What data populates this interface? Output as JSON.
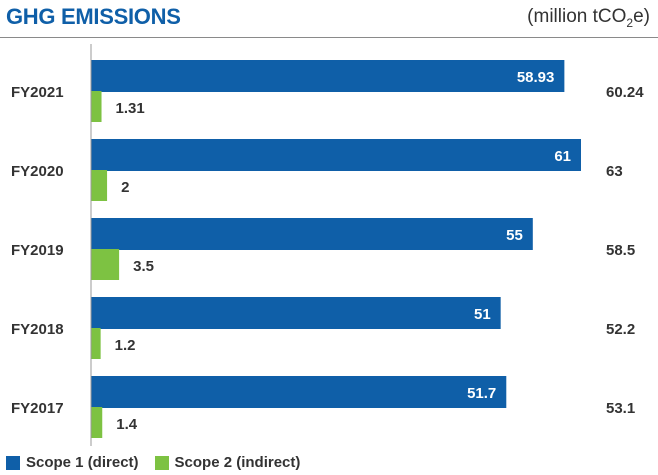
{
  "title": "GHG EMISSIONS",
  "unit": {
    "prefix": "(million tCO",
    "sub": "2",
    "suffix": "e)"
  },
  "chart_data": {
    "type": "bar",
    "orientation": "horizontal",
    "categories": [
      "FY2021",
      "FY2020",
      "FY2019",
      "FY2018",
      "FY2017"
    ],
    "series": [
      {
        "name": "Scope 1 (direct)",
        "color": "#0f5fa8",
        "values": [
          58.93,
          61,
          55,
          51,
          51.7
        ],
        "labels": [
          "58.93",
          "61",
          "55",
          "51",
          "51.7"
        ]
      },
      {
        "name": "Scope 2 (indirect)",
        "color": "#7dc242",
        "values": [
          1.31,
          2,
          3.5,
          1.2,
          1.4
        ],
        "labels": [
          "1.31",
          "2",
          "3.5",
          "1.2",
          "1.4"
        ]
      }
    ],
    "totals": [
      "60.24",
      "63",
      "58.5",
      "52.2",
      "53.1"
    ],
    "xlim": [
      0,
      61
    ],
    "legend": "bottom-left"
  }
}
